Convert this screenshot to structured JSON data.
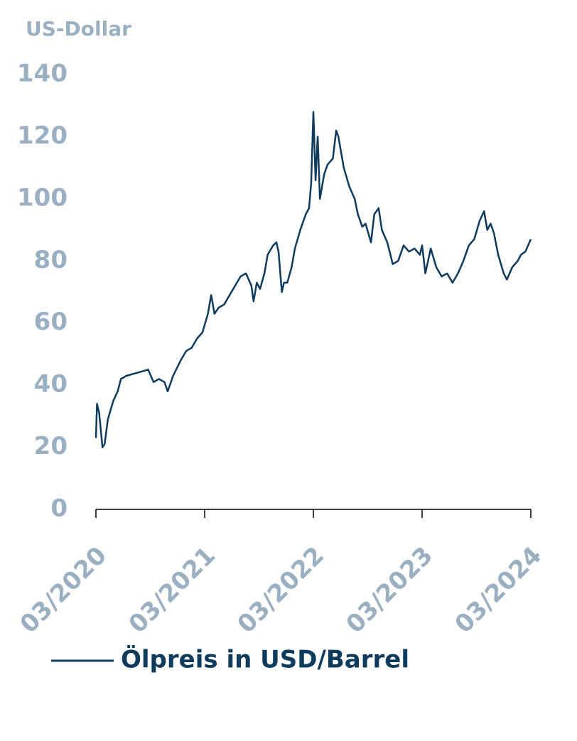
{
  "chart_data": {
    "type": "line",
    "y_label": "US-Dollar",
    "x": [
      2020.17,
      2020.18,
      2020.2,
      2020.23,
      2020.25,
      2020.28,
      2020.33,
      2020.37,
      2020.4,
      2020.45,
      2020.55,
      2020.65,
      2020.7,
      2020.75,
      2020.8,
      2020.83,
      2020.88,
      2020.95,
      2021.0,
      2021.05,
      2021.1,
      2021.15,
      2021.2,
      2021.23,
      2021.26,
      2021.3,
      2021.35,
      2021.4,
      2021.45,
      2021.5,
      2021.55,
      2021.6,
      2021.62,
      2021.65,
      2021.68,
      2021.72,
      2021.75,
      2021.8,
      2021.83,
      2021.85,
      2021.88,
      2021.9,
      2021.93,
      2021.97,
      2022.0,
      2022.05,
      2022.1,
      2022.13,
      2022.15,
      2022.17,
      2022.19,
      2022.21,
      2022.23,
      2022.27,
      2022.3,
      2022.35,
      2022.38,
      2022.4,
      2022.45,
      2022.5,
      2022.55,
      2022.58,
      2022.62,
      2022.65,
      2022.7,
      2022.73,
      2022.77,
      2022.8,
      2022.85,
      2022.9,
      2022.95,
      2023.0,
      2023.05,
      2023.1,
      2023.15,
      2023.17,
      2023.2,
      2023.25,
      2023.3,
      2023.35,
      2023.4,
      2023.45,
      2023.5,
      2023.55,
      2023.6,
      2023.65,
      2023.7,
      2023.74,
      2023.77,
      2023.8,
      2023.83,
      2023.87,
      2023.92,
      2023.95,
      2024.0,
      2024.05,
      2024.08,
      2024.12,
      2024.17
    ],
    "series": [
      {
        "name": "Ölpreis in USD/Barrel",
        "color": "#0d3b5e",
        "values": [
          23,
          34,
          31,
          20,
          21,
          29,
          35,
          38,
          42,
          43,
          44,
          45,
          41,
          42,
          41,
          38,
          43,
          48,
          51,
          52,
          55,
          57,
          63,
          69,
          63,
          65,
          66,
          69,
          72,
          75,
          76,
          72,
          67,
          73,
          71,
          76,
          82,
          85,
          86,
          83,
          70,
          73,
          73,
          78,
          84,
          90,
          95,
          97,
          105,
          128,
          106,
          120,
          100,
          108,
          111,
          113,
          122,
          120,
          110,
          104,
          100,
          95,
          91,
          92,
          86,
          95,
          97,
          90,
          86,
          79,
          80,
          85,
          83,
          84,
          82,
          85,
          76,
          84,
          78,
          75,
          76,
          73,
          76,
          80,
          85,
          87,
          93,
          96,
          90,
          92,
          89,
          82,
          76,
          74,
          78,
          80,
          82,
          83,
          87
        ]
      }
    ],
    "xlim": [
      2020.17,
      2024.17
    ],
    "xticks": [
      {
        "value": 2020.17,
        "label": "03/2020"
      },
      {
        "value": 2021.17,
        "label": "03/2021"
      },
      {
        "value": 2022.17,
        "label": "03/2022"
      },
      {
        "value": 2023.17,
        "label": "03/2023"
      },
      {
        "value": 2024.17,
        "label": "03/2024"
      }
    ],
    "ylim": [
      0,
      140
    ],
    "yticks": [
      0,
      20,
      40,
      60,
      80,
      100,
      120,
      140
    ],
    "grid": false
  }
}
